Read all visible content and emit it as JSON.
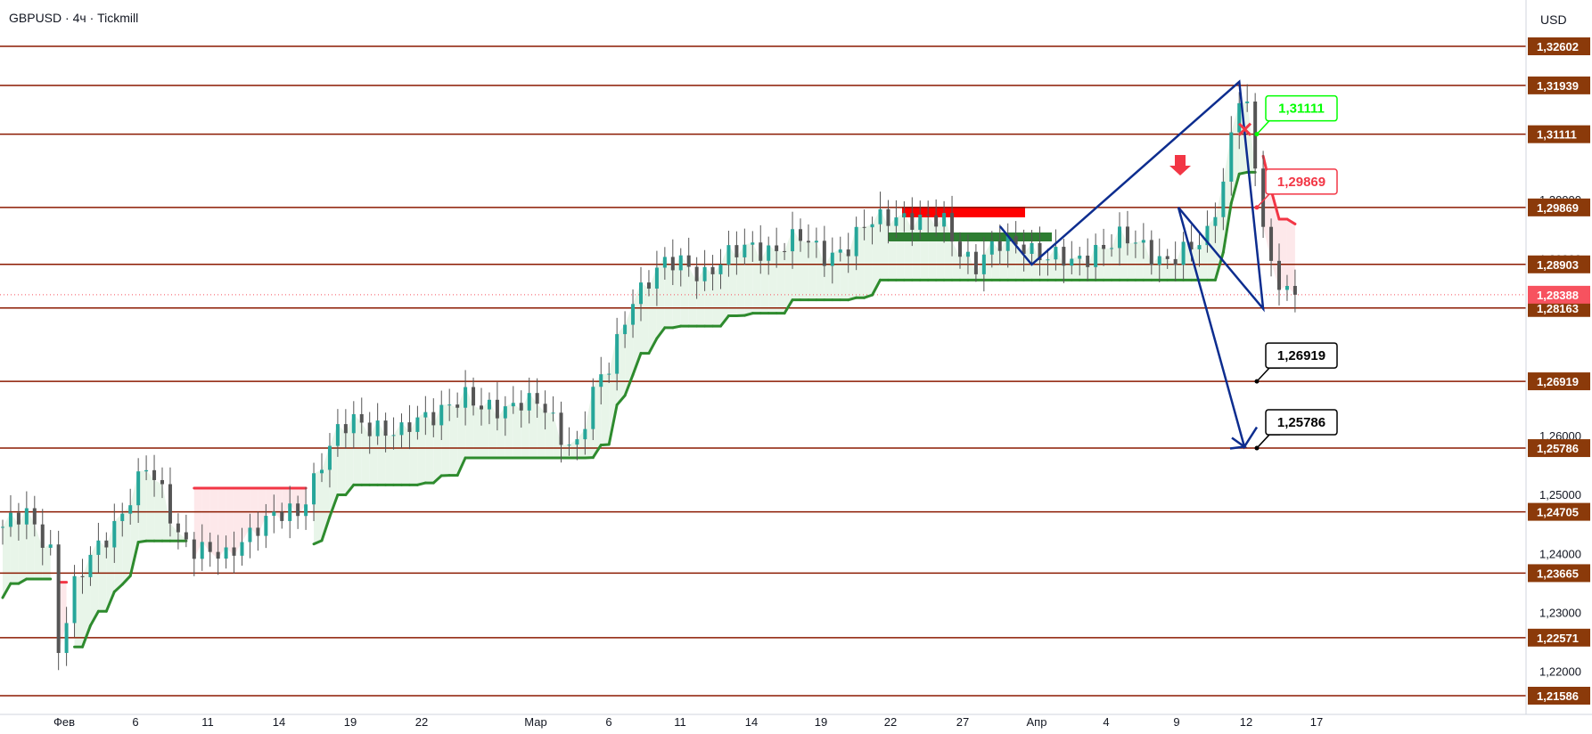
{
  "header": {
    "symbol": "GBPUSD",
    "interval": "4ч",
    "broker": "Tickmill",
    "separator": "·"
  },
  "price_axis": {
    "currency": "USD"
  },
  "colors": {
    "level_line": "#8b1a00",
    "level_label_bg": "#8b3a0a",
    "current_price_bg": "#f7525f",
    "bull_candle": "#26a69a",
    "candle": "#555555",
    "supertrend_up": "#2e8b2e",
    "supertrend_down": "#f23645",
    "up_fill": "#e8f5e9",
    "down_fill": "#fde8ea",
    "projection": "#0d2d8f",
    "zone_resistance": "#ff0000",
    "zone_support": "#2e7d32",
    "target_callout_border": "#000000",
    "stop_callout": "#00ff00",
    "entry_callout": "#f23645"
  },
  "chart_data": {
    "type": "candlestick",
    "symbol": "GBPUSD",
    "timeframe": "4ч",
    "y_axis": {
      "ticks": [
        "1,30000",
        "1,29000",
        "1,27000",
        "1,26000",
        "1,25000",
        "1,24000",
        "1,23000",
        "1,22000"
      ],
      "range": [
        1.214,
        1.3285
      ]
    },
    "x_axis": {
      "ticks": [
        "Фев",
        "6",
        "11",
        "14",
        "19",
        "22",
        "Мар",
        "6",
        "11",
        "14",
        "19",
        "22",
        "27",
        "Апр",
        "4",
        "9",
        "12",
        "17"
      ]
    },
    "levels": [
      "1,32602",
      "1,31939",
      "1,31111",
      "1,29869",
      "1,28903",
      "1,28163",
      "1,26919",
      "1,25786",
      "1,24705",
      "1,23665",
      "1,22571",
      "1,21586"
    ],
    "current_price": "1,28388",
    "callouts": [
      {
        "label": "1,31111",
        "role": "stop-loss"
      },
      {
        "label": "1,29869",
        "role": "entry"
      },
      {
        "label": "1,26919",
        "role": "target-1"
      },
      {
        "label": "1,25786",
        "role": "target-2"
      }
    ],
    "price_path_anchors": [
      [
        0,
        1.2445
      ],
      [
        3,
        1.246
      ],
      [
        5,
        1.243
      ],
      [
        6,
        1.241
      ],
      [
        7,
        1.2245
      ],
      [
        8,
        1.229
      ],
      [
        9,
        1.234
      ],
      [
        12,
        1.241
      ],
      [
        15,
        1.2475
      ],
      [
        18,
        1.254
      ],
      [
        20,
        1.25
      ],
      [
        22,
        1.244
      ],
      [
        24,
        1.241
      ],
      [
        26,
        1.2395
      ],
      [
        28,
        1.239
      ],
      [
        30,
        1.243
      ],
      [
        32,
        1.245
      ],
      [
        35,
        1.246
      ],
      [
        37,
        1.247
      ],
      [
        40,
        1.256
      ],
      [
        42,
        1.26
      ],
      [
        44,
        1.262
      ],
      [
        47,
        1.262
      ],
      [
        50,
        1.26
      ],
      [
        53,
        1.263
      ],
      [
        56,
        1.266
      ],
      [
        58,
        1.266
      ],
      [
        60,
        1.264
      ],
      [
        62,
        1.265
      ],
      [
        65,
        1.266
      ],
      [
        68,
        1.264
      ],
      [
        70,
        1.26
      ],
      [
        72,
        1.259
      ],
      [
        74,
        1.267
      ],
      [
        76,
        1.271
      ],
      [
        79,
        1.284
      ],
      [
        82,
        1.288
      ],
      [
        85,
        1.289
      ],
      [
        88,
        1.288
      ],
      [
        91,
        1.29
      ],
      [
        94,
        1.292
      ],
      [
        97,
        1.292
      ],
      [
        100,
        1.293
      ],
      [
        103,
        1.291
      ],
      [
        106,
        1.292
      ],
      [
        109,
        1.296
      ],
      [
        112,
        1.298
      ],
      [
        115,
        1.296
      ],
      [
        118,
        1.296
      ],
      [
        120,
        1.292
      ],
      [
        122,
        1.289
      ],
      [
        125,
        1.292
      ],
      [
        128,
        1.293
      ],
      [
        131,
        1.29
      ],
      [
        134,
        1.289
      ],
      [
        137,
        1.292
      ],
      [
        140,
        1.293
      ],
      [
        143,
        1.292
      ],
      [
        146,
        1.29
      ],
      [
        149,
        1.291
      ],
      [
        151,
        1.294
      ],
      [
        153,
        1.304
      ],
      [
        155,
        1.318
      ],
      [
        156,
        1.315
      ],
      [
        157,
        1.304
      ],
      [
        158,
        1.296
      ],
      [
        159,
        1.288
      ],
      [
        160,
        1.286
      ],
      [
        161,
        1.287
      ],
      [
        162,
        1.284
      ]
    ]
  }
}
